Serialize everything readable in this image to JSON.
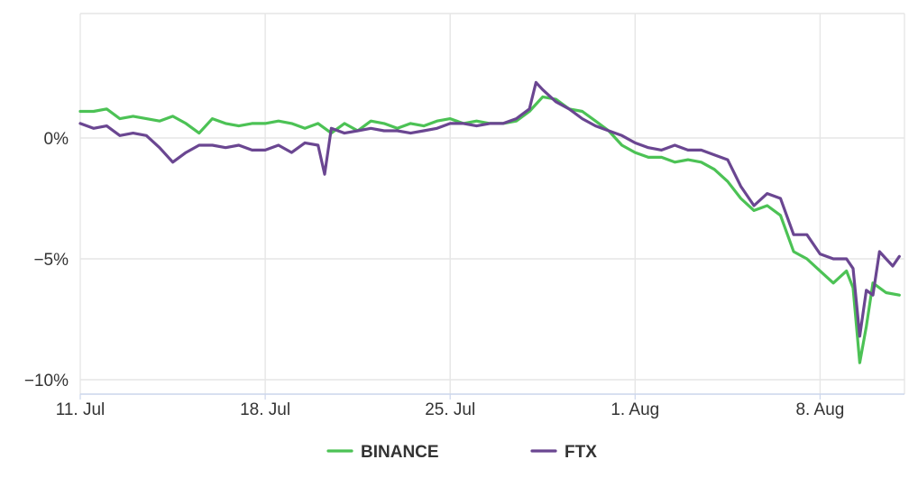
{
  "chart_data": {
    "type": "line",
    "title": "",
    "xlabel": "",
    "ylabel": "",
    "x_range": [
      "2022-07-11",
      "2022-08-11"
    ],
    "ylim": [
      -10,
      5
    ],
    "y_unit": "%",
    "y_ticks": [
      {
        "value": 0,
        "label": "0%"
      },
      {
        "value": -5,
        "label": "−5%"
      },
      {
        "value": -10,
        "label": "−10%"
      }
    ],
    "x_ticks": [
      {
        "date": "2022-07-11",
        "label": "11. Jul"
      },
      {
        "date": "2022-07-18",
        "label": "18. Jul"
      },
      {
        "date": "2022-07-25",
        "label": "25. Jul"
      },
      {
        "date": "2022-08-01",
        "label": "1. Aug"
      },
      {
        "date": "2022-08-08",
        "label": "8. Aug"
      }
    ],
    "grid": {
      "vertical": true,
      "horizontal": true
    },
    "legend_position": "bottom-center",
    "series": [
      {
        "name": "BINANCE",
        "color": "#4cc255",
        "x": [
          "2022-07-11",
          "2022-07-11T12:00",
          "2022-07-12",
          "2022-07-12T12:00",
          "2022-07-13",
          "2022-07-13T12:00",
          "2022-07-14",
          "2022-07-14T12:00",
          "2022-07-15",
          "2022-07-15T12:00",
          "2022-07-16",
          "2022-07-16T12:00",
          "2022-07-17",
          "2022-07-17T12:00",
          "2022-07-18",
          "2022-07-18T12:00",
          "2022-07-19",
          "2022-07-19T12:00",
          "2022-07-20",
          "2022-07-20T12:00",
          "2022-07-21",
          "2022-07-21T12:00",
          "2022-07-22",
          "2022-07-22T12:00",
          "2022-07-23",
          "2022-07-23T12:00",
          "2022-07-24",
          "2022-07-24T12:00",
          "2022-07-25",
          "2022-07-25T12:00",
          "2022-07-26",
          "2022-07-26T12:00",
          "2022-07-27",
          "2022-07-27T12:00",
          "2022-07-28",
          "2022-07-28T12:00",
          "2022-07-29",
          "2022-07-29T12:00",
          "2022-07-30",
          "2022-07-30T12:00",
          "2022-07-31",
          "2022-07-31T12:00",
          "2022-08-01",
          "2022-08-01T12:00",
          "2022-08-02",
          "2022-08-02T12:00",
          "2022-08-03",
          "2022-08-03T12:00",
          "2022-08-04",
          "2022-08-04T12:00",
          "2022-08-05",
          "2022-08-05T12:00",
          "2022-08-06",
          "2022-08-06T12:00",
          "2022-08-07",
          "2022-08-07T12:00",
          "2022-08-08",
          "2022-08-08T12:00",
          "2022-08-09",
          "2022-08-09T06:00",
          "2022-08-09T12:00",
          "2022-08-09T18:00",
          "2022-08-10",
          "2022-08-10T12:00",
          "2022-08-11"
        ],
        "values": [
          1.1,
          1.1,
          1.2,
          0.8,
          0.9,
          0.8,
          0.7,
          0.9,
          0.6,
          0.2,
          0.8,
          0.6,
          0.5,
          0.6,
          0.6,
          0.7,
          0.6,
          0.4,
          0.6,
          0.2,
          0.6,
          0.3,
          0.7,
          0.6,
          0.4,
          0.6,
          0.5,
          0.7,
          0.8,
          0.6,
          0.7,
          0.6,
          0.6,
          0.7,
          1.1,
          1.7,
          1.6,
          1.2,
          1.1,
          0.7,
          0.3,
          -0.3,
          -0.6,
          -0.8,
          -0.8,
          -1.0,
          -0.9,
          -1.0,
          -1.3,
          -1.8,
          -2.5,
          -3.0,
          -2.8,
          -3.2,
          -4.7,
          -5.0,
          -5.5,
          -6.0,
          -5.5,
          -6.2,
          -9.3,
          -7.8,
          -6.0,
          -6.4,
          -6.5
        ]
      },
      {
        "name": "FTX",
        "color": "#6a4691",
        "x": [
          "2022-07-11",
          "2022-07-11T12:00",
          "2022-07-12",
          "2022-07-12T12:00",
          "2022-07-13",
          "2022-07-13T12:00",
          "2022-07-14",
          "2022-07-14T12:00",
          "2022-07-15",
          "2022-07-15T12:00",
          "2022-07-16",
          "2022-07-16T12:00",
          "2022-07-17",
          "2022-07-17T12:00",
          "2022-07-18",
          "2022-07-18T12:00",
          "2022-07-19",
          "2022-07-19T12:00",
          "2022-07-20",
          "2022-07-20T06:00",
          "2022-07-20T12:00",
          "2022-07-21",
          "2022-07-21T12:00",
          "2022-07-22",
          "2022-07-22T12:00",
          "2022-07-23",
          "2022-07-23T12:00",
          "2022-07-24",
          "2022-07-24T12:00",
          "2022-07-25",
          "2022-07-25T12:00",
          "2022-07-26",
          "2022-07-26T12:00",
          "2022-07-27",
          "2022-07-27T12:00",
          "2022-07-28",
          "2022-07-28T06:00",
          "2022-07-28T12:00",
          "2022-07-29",
          "2022-07-29T12:00",
          "2022-07-30",
          "2022-07-30T12:00",
          "2022-07-31",
          "2022-07-31T12:00",
          "2022-08-01",
          "2022-08-01T12:00",
          "2022-08-02",
          "2022-08-02T12:00",
          "2022-08-03",
          "2022-08-03T12:00",
          "2022-08-04",
          "2022-08-04T12:00",
          "2022-08-05",
          "2022-08-05T12:00",
          "2022-08-06",
          "2022-08-06T12:00",
          "2022-08-07",
          "2022-08-07T12:00",
          "2022-08-08",
          "2022-08-08T12:00",
          "2022-08-09",
          "2022-08-09T06:00",
          "2022-08-09T12:00",
          "2022-08-09T18:00",
          "2022-08-10",
          "2022-08-10T06:00",
          "2022-08-10T12:00",
          "2022-08-10T18:00",
          "2022-08-11"
        ],
        "values": [
          0.6,
          0.4,
          0.5,
          0.1,
          0.2,
          0.1,
          -0.4,
          -1.0,
          -0.6,
          -0.3,
          -0.3,
          -0.4,
          -0.3,
          -0.5,
          -0.5,
          -0.3,
          -0.6,
          -0.2,
          -0.3,
          -1.5,
          0.4,
          0.2,
          0.3,
          0.4,
          0.3,
          0.3,
          0.2,
          0.3,
          0.4,
          0.6,
          0.6,
          0.5,
          0.6,
          0.6,
          0.8,
          1.2,
          2.3,
          2.0,
          1.5,
          1.2,
          0.8,
          0.5,
          0.3,
          0.1,
          -0.2,
          -0.4,
          -0.5,
          -0.3,
          -0.5,
          -0.5,
          -0.7,
          -0.9,
          -2.0,
          -2.8,
          -2.3,
          -2.5,
          -4.0,
          -4.0,
          -4.8,
          -5.0,
          -5.0,
          -5.4,
          -8.2,
          -6.3,
          -6.5,
          -4.7,
          -5.0,
          -5.3,
          -4.9
        ]
      }
    ]
  }
}
